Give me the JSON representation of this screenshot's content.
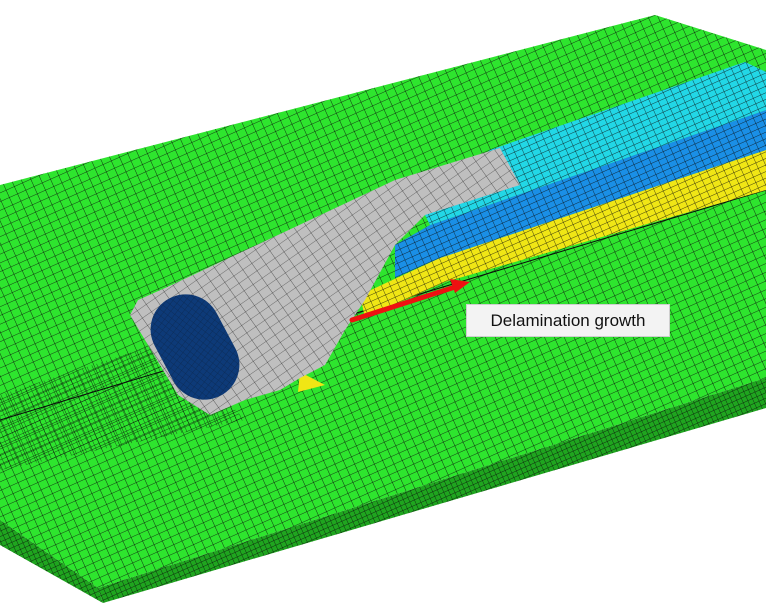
{
  "annotation": {
    "text": "Delamination growth"
  },
  "colors": {
    "skin": "#2ee52e",
    "skin_dark": "#1fa51f",
    "stringer_top": "#22d7e6",
    "stringer_mid": "#1a8fe6",
    "stringer_low": "#f0e615",
    "flange": "#bfbfbf",
    "cutout": "#0d3a78",
    "arrow": "#ee1111",
    "mesh_line": "#0a0a0a"
  }
}
